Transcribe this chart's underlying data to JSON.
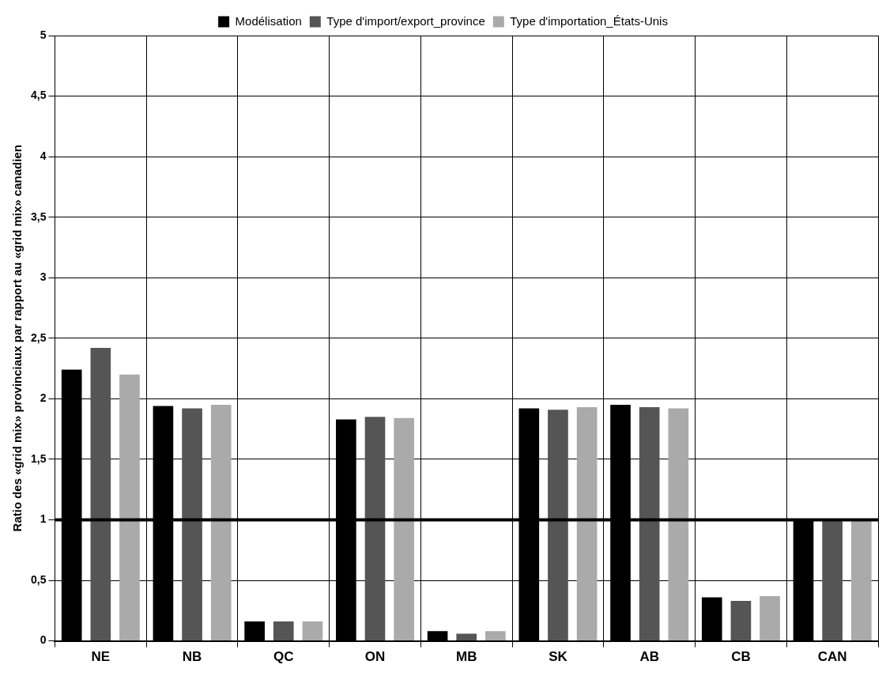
{
  "chart_data": {
    "type": "bar",
    "ylabel": "Ratio des «grid mix» provinciaux par rapport au «grid mix» canadien",
    "categories": [
      "NE",
      "NB",
      "QC",
      "ON",
      "MB",
      "SK",
      "AB",
      "CB",
      "CAN"
    ],
    "series": [
      {
        "name": "Modélisation",
        "color": "#000000",
        "values": [
          2.24,
          1.94,
          0.16,
          1.83,
          0.08,
          1.92,
          1.95,
          0.36,
          1.0
        ]
      },
      {
        "name": "Type d'import/export_province",
        "color": "#555555",
        "values": [
          2.42,
          1.92,
          0.16,
          1.85,
          0.06,
          1.91,
          1.93,
          0.33,
          1.0
        ]
      },
      {
        "name": "Type d'importation_États-Unis",
        "color": "#aaaaaa",
        "values": [
          2.2,
          1.95,
          0.16,
          1.84,
          0.08,
          1.93,
          1.92,
          0.37,
          1.0
        ]
      }
    ],
    "ylim": [
      0,
      5
    ],
    "yticks": [
      0,
      {
        "value": 0.5,
        "label": "0,5"
      },
      1,
      {
        "value": 1.5,
        "label": "1,5"
      },
      2,
      {
        "value": 2.5,
        "label": "2,5"
      },
      3,
      {
        "value": 3.5,
        "label": "3,5"
      },
      4,
      {
        "value": 4.5,
        "label": "4,5"
      },
      5
    ],
    "ref_lines": [
      {
        "axis": "y",
        "value": 1,
        "color": "#000000"
      }
    ],
    "grid": true,
    "legend": "top"
  }
}
